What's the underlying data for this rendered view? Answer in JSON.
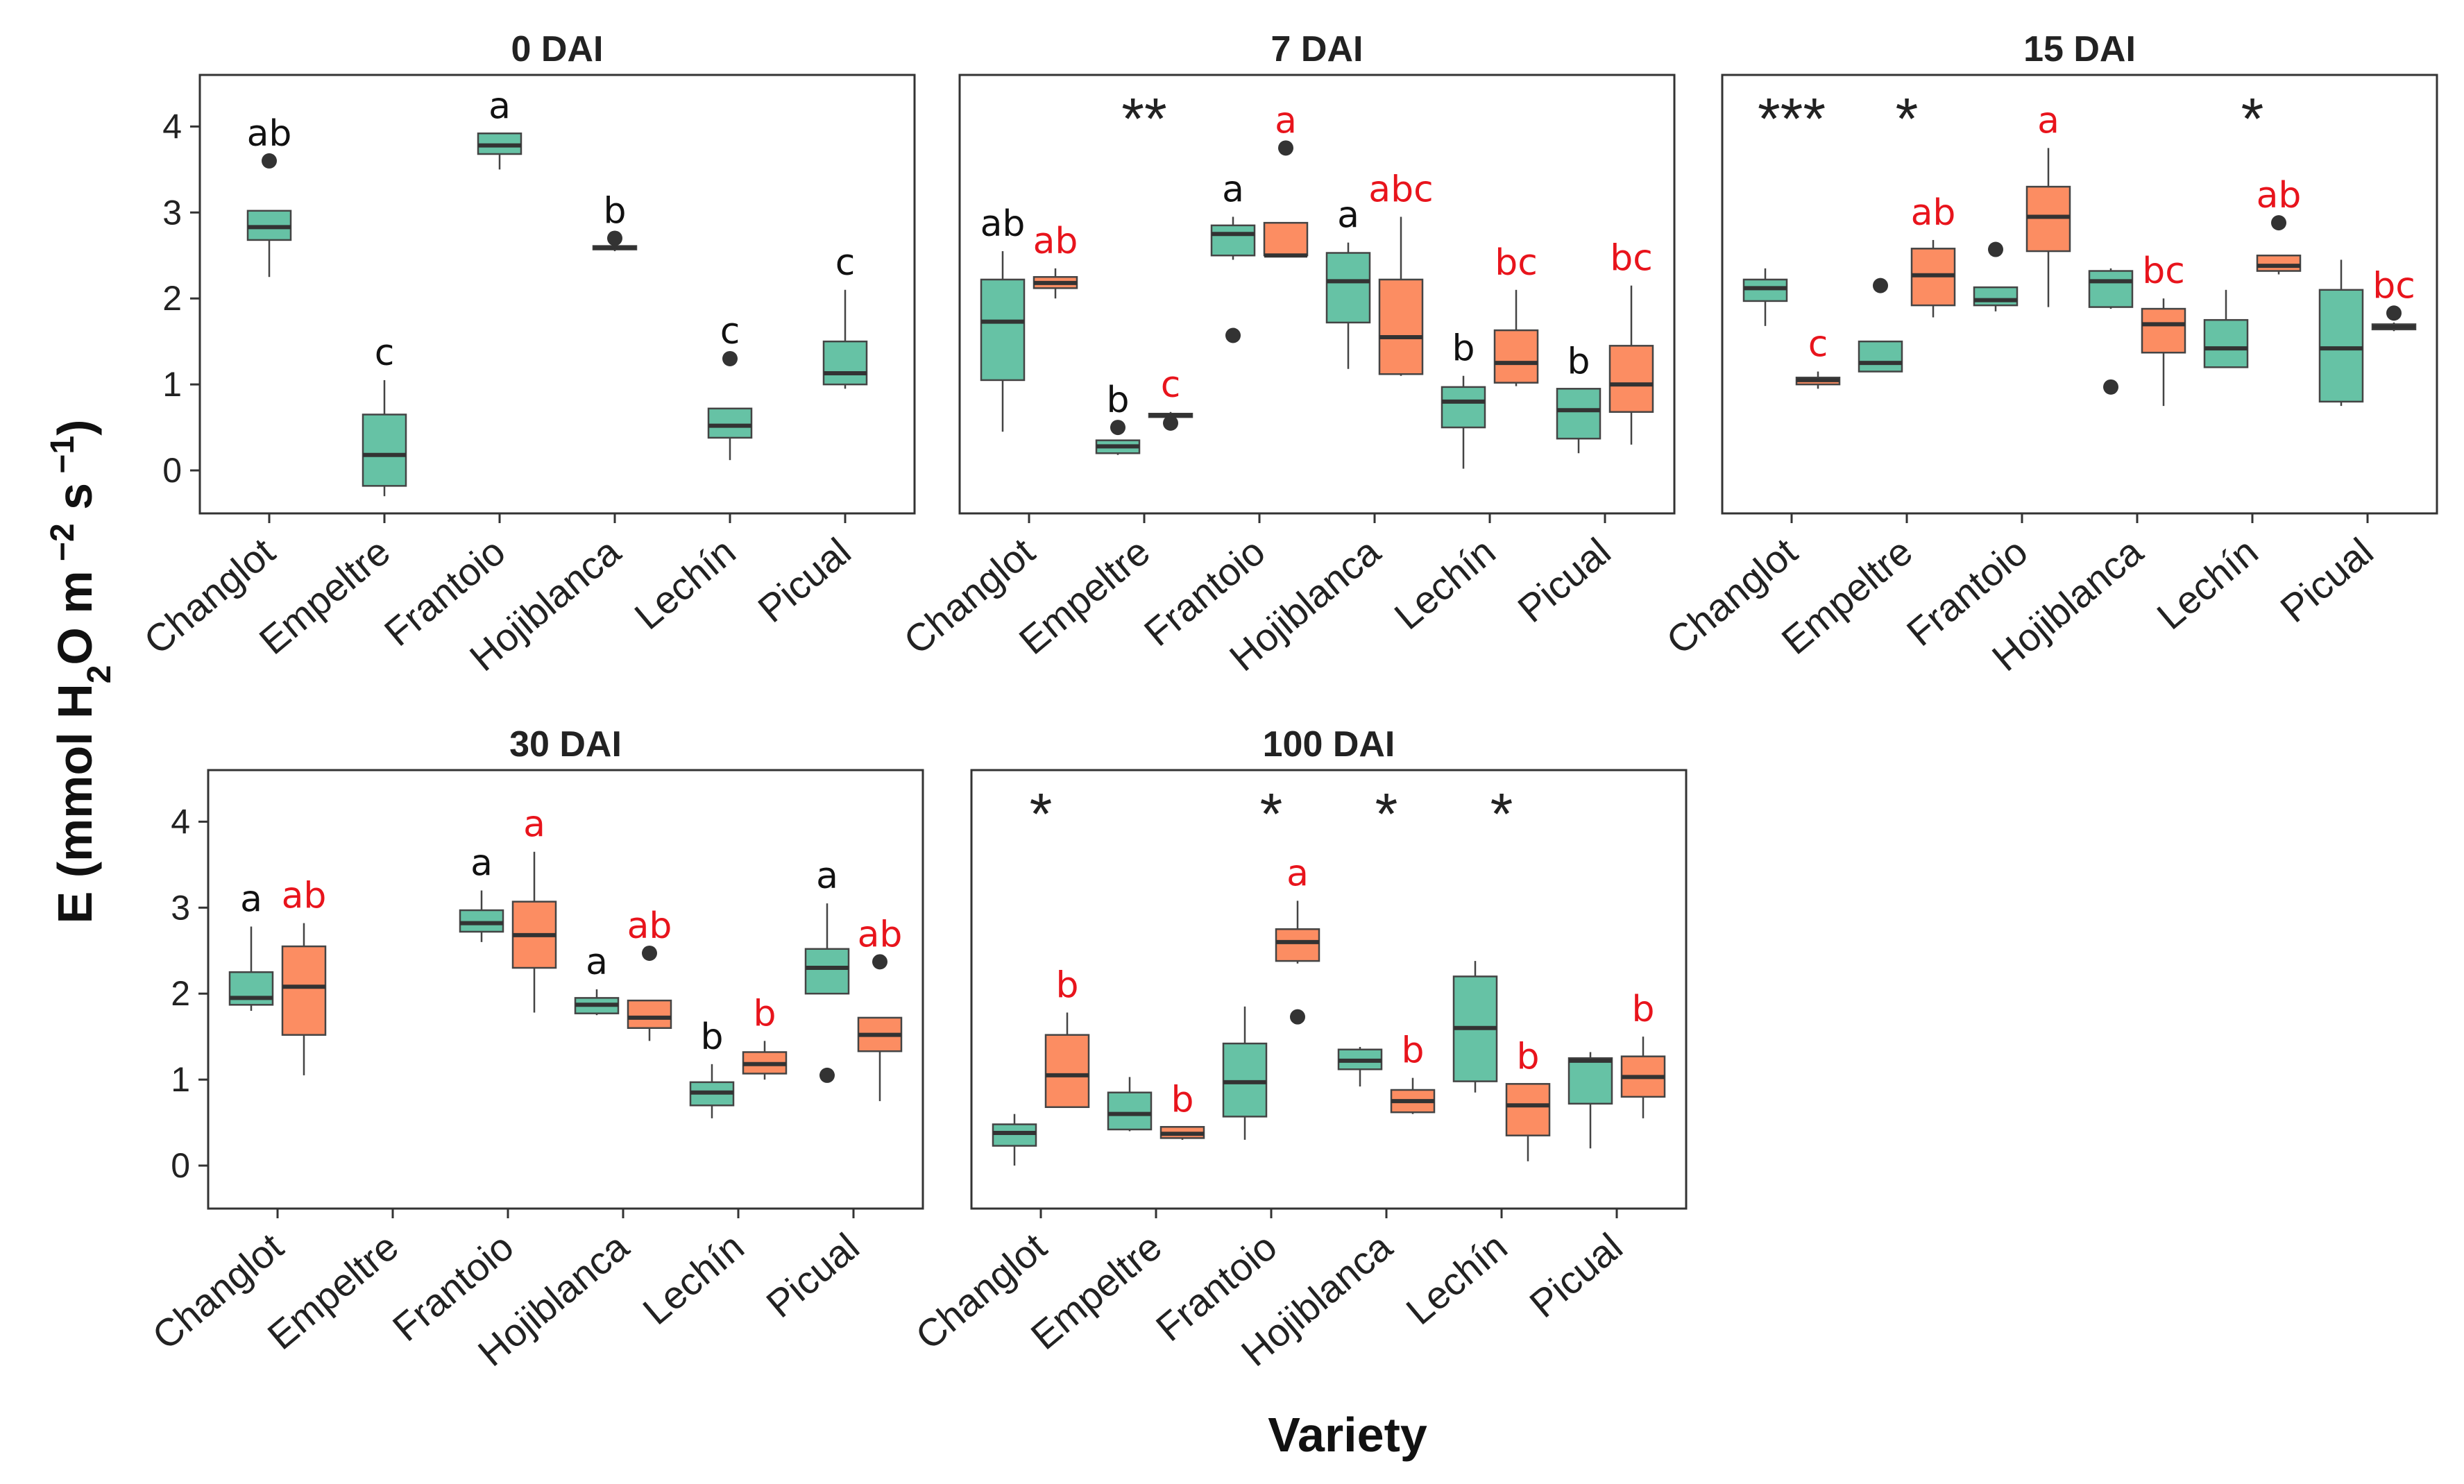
{
  "chart_data": {
    "type": "boxplot",
    "figure": {
      "ylabel": {
        "main": "E (mmol H",
        "sub": "2",
        "mid": "O m",
        "sup1": " −2",
        "mid2": " s",
        "sup2": " −1",
        "end": ")"
      },
      "xlabel": "Variety",
      "categories": [
        "Changlot",
        "Empeltre",
        "Frantoio",
        "Hojiblanca",
        "Lechín",
        "Picual"
      ],
      "ylim": [
        -0.5,
        4.6
      ],
      "yticks": [
        0,
        1,
        2,
        3,
        4
      ],
      "series_colors": {
        "control": "#66C2A5",
        "inoculated": "#FC8D62"
      },
      "letter_colors": {
        "control": "#111111",
        "inoculated": "#E8141C"
      }
    },
    "panels": [
      {
        "title": "0 DAI",
        "boxes": [
          {
            "category": "Changlot",
            "series": "control",
            "whislo": 2.25,
            "q1": 2.68,
            "med": 2.83,
            "q3": 3.02,
            "whishi": 3.02,
            "fliers": [
              3.6
            ],
            "letter": "ab"
          },
          {
            "category": "Empeltre",
            "series": "control",
            "whislo": -0.3,
            "q1": -0.18,
            "med": 0.18,
            "q3": 0.65,
            "whishi": 1.05,
            "fliers": [],
            "letter": "c"
          },
          {
            "category": "Frantoio",
            "series": "control",
            "whislo": 3.5,
            "q1": 3.68,
            "med": 3.78,
            "q3": 3.92,
            "whishi": 3.92,
            "fliers": [],
            "letter": "a"
          },
          {
            "category": "Hojiblanca",
            "series": "control",
            "whislo": 2.55,
            "q1": 2.57,
            "med": 2.59,
            "q3": 2.61,
            "whishi": 2.63,
            "fliers": [
              2.7
            ],
            "letter": "b"
          },
          {
            "category": "Lechín",
            "series": "control",
            "whislo": 0.12,
            "q1": 0.38,
            "med": 0.52,
            "q3": 0.72,
            "whishi": 0.72,
            "fliers": [
              1.3
            ],
            "letter": "c"
          },
          {
            "category": "Picual",
            "series": "control",
            "whislo": 0.95,
            "q1": 1.0,
            "med": 1.13,
            "q3": 1.5,
            "whishi": 2.1,
            "fliers": [],
            "letter": "c"
          }
        ],
        "stars": []
      },
      {
        "title": "7 DAI",
        "boxes": [
          {
            "category": "Changlot",
            "series": "control",
            "whislo": 0.45,
            "q1": 1.05,
            "med": 1.73,
            "q3": 2.22,
            "whishi": 2.55,
            "fliers": [],
            "letter": "ab"
          },
          {
            "category": "Changlot",
            "series": "inoculated",
            "whislo": 2.0,
            "q1": 2.12,
            "med": 2.18,
            "q3": 2.25,
            "whishi": 2.35,
            "fliers": [],
            "letter": "ab"
          },
          {
            "category": "Empeltre",
            "series": "control",
            "whislo": 0.18,
            "q1": 0.2,
            "med": 0.28,
            "q3": 0.35,
            "whishi": 0.35,
            "fliers": [
              0.5
            ],
            "letter": "b"
          },
          {
            "category": "Empeltre",
            "series": "inoculated",
            "whislo": 0.6,
            "q1": 0.62,
            "med": 0.64,
            "q3": 0.66,
            "whishi": 0.68,
            "fliers": [
              0.55
            ],
            "letter": "c"
          },
          {
            "category": "Frantoio",
            "series": "control",
            "whislo": 2.45,
            "q1": 2.5,
            "med": 2.75,
            "q3": 2.85,
            "whishi": 2.95,
            "fliers": [
              1.57
            ],
            "letter": "a"
          },
          {
            "category": "Frantoio",
            "series": "inoculated",
            "whislo": 2.5,
            "q1": 2.5,
            "med": 2.5,
            "q3": 2.88,
            "whishi": 2.88,
            "fliers": [
              3.75
            ],
            "letter": "a"
          },
          {
            "category": "Hojiblanca",
            "series": "control",
            "whislo": 1.18,
            "q1": 1.72,
            "med": 2.2,
            "q3": 2.53,
            "whishi": 2.65,
            "fliers": [],
            "letter": "a"
          },
          {
            "category": "Hojiblanca",
            "series": "inoculated",
            "whislo": 1.1,
            "q1": 1.12,
            "med": 1.55,
            "q3": 2.22,
            "whishi": 2.95,
            "fliers": [],
            "letter": "abc"
          },
          {
            "category": "Lechín",
            "series": "control",
            "whislo": 0.02,
            "q1": 0.5,
            "med": 0.8,
            "q3": 0.97,
            "whishi": 1.1,
            "fliers": [],
            "letter": "b"
          },
          {
            "category": "Lechín",
            "series": "inoculated",
            "whislo": 0.98,
            "q1": 1.02,
            "med": 1.25,
            "q3": 1.63,
            "whishi": 2.1,
            "fliers": [],
            "letter": "bc"
          },
          {
            "category": "Picual",
            "series": "control",
            "whislo": 0.2,
            "q1": 0.37,
            "med": 0.7,
            "q3": 0.95,
            "whishi": 0.95,
            "fliers": [],
            "letter": "b"
          },
          {
            "category": "Picual",
            "series": "inoculated",
            "whislo": 0.3,
            "q1": 0.68,
            "med": 1.0,
            "q3": 1.45,
            "whishi": 2.15,
            "fliers": [],
            "letter": "bc"
          }
        ],
        "stars": [
          {
            "category": "Empeltre",
            "text": "**"
          }
        ]
      },
      {
        "title": "15 DAI",
        "boxes": [
          {
            "category": "Changlot",
            "series": "control",
            "whislo": 1.68,
            "q1": 1.97,
            "med": 2.12,
            "q3": 2.22,
            "whishi": 2.35,
            "fliers": [],
            "letter": ""
          },
          {
            "category": "Changlot",
            "series": "inoculated",
            "whislo": 0.95,
            "q1": 1.0,
            "med": 1.05,
            "q3": 1.08,
            "whishi": 1.15,
            "fliers": [],
            "letter": "c"
          },
          {
            "category": "Empeltre",
            "series": "control",
            "whislo": 1.15,
            "q1": 1.15,
            "med": 1.25,
            "q3": 1.5,
            "whishi": 1.5,
            "fliers": [
              2.15
            ],
            "letter": ""
          },
          {
            "category": "Empeltre",
            "series": "inoculated",
            "whislo": 1.78,
            "q1": 1.92,
            "med": 2.27,
            "q3": 2.58,
            "whishi": 2.68,
            "fliers": [],
            "letter": "ab"
          },
          {
            "category": "Frantoio",
            "series": "control",
            "whislo": 1.85,
            "q1": 1.92,
            "med": 1.98,
            "q3": 2.13,
            "whishi": 2.13,
            "fliers": [
              2.57
            ],
            "letter": ""
          },
          {
            "category": "Frantoio",
            "series": "inoculated",
            "whislo": 1.9,
            "q1": 2.55,
            "med": 2.95,
            "q3": 3.3,
            "whishi": 3.75,
            "fliers": [],
            "letter": "a"
          },
          {
            "category": "Hojiblanca",
            "series": "control",
            "whislo": 1.88,
            "q1": 1.9,
            "med": 2.2,
            "q3": 2.32,
            "whishi": 2.35,
            "fliers": [
              0.97
            ],
            "letter": ""
          },
          {
            "category": "Hojiblanca",
            "series": "inoculated",
            "whislo": 0.75,
            "q1": 1.37,
            "med": 1.7,
            "q3": 1.88,
            "whishi": 2.0,
            "fliers": [],
            "letter": "bc"
          },
          {
            "category": "Lechín",
            "series": "control",
            "whislo": 1.2,
            "q1": 1.2,
            "med": 1.42,
            "q3": 1.75,
            "whishi": 2.1,
            "fliers": [],
            "letter": ""
          },
          {
            "category": "Lechín",
            "series": "inoculated",
            "whislo": 2.28,
            "q1": 2.32,
            "med": 2.38,
            "q3": 2.5,
            "whishi": 2.5,
            "fliers": [
              2.88
            ],
            "letter": "ab"
          },
          {
            "category": "Picual",
            "series": "control",
            "whislo": 0.75,
            "q1": 0.8,
            "med": 1.42,
            "q3": 2.1,
            "whishi": 2.45,
            "fliers": [],
            "letter": ""
          },
          {
            "category": "Picual",
            "series": "inoculated",
            "whislo": 1.62,
            "q1": 1.64,
            "med": 1.67,
            "q3": 1.7,
            "whishi": 1.72,
            "fliers": [
              1.83
            ],
            "letter": "bc"
          }
        ],
        "stars": [
          {
            "category": "Changlot",
            "text": "***"
          },
          {
            "category": "Empeltre",
            "text": "*"
          },
          {
            "category": "Lechín",
            "text": "*"
          }
        ]
      },
      {
        "title": "30 DAI",
        "boxes": [
          {
            "category": "Changlot",
            "series": "control",
            "whislo": 1.8,
            "q1": 1.87,
            "med": 1.95,
            "q3": 2.25,
            "whishi": 2.78,
            "fliers": [],
            "letter": "a"
          },
          {
            "category": "Changlot",
            "series": "inoculated",
            "whislo": 1.05,
            "q1": 1.52,
            "med": 2.08,
            "q3": 2.55,
            "whishi": 2.82,
            "fliers": [],
            "letter": "ab"
          },
          {
            "category": "Frantoio",
            "series": "control",
            "whislo": 2.6,
            "q1": 2.72,
            "med": 2.82,
            "q3": 2.97,
            "whishi": 3.2,
            "fliers": [],
            "letter": "a"
          },
          {
            "category": "Frantoio",
            "series": "inoculated",
            "whislo": 1.78,
            "q1": 2.3,
            "med": 2.68,
            "q3": 3.07,
            "whishi": 3.65,
            "fliers": [],
            "letter": "a"
          },
          {
            "category": "Hojiblanca",
            "series": "control",
            "whislo": 1.75,
            "q1": 1.77,
            "med": 1.87,
            "q3": 1.95,
            "whishi": 2.05,
            "fliers": [],
            "letter": "a"
          },
          {
            "category": "Hojiblanca",
            "series": "inoculated",
            "whislo": 1.45,
            "q1": 1.6,
            "med": 1.72,
            "q3": 1.92,
            "whishi": 1.92,
            "fliers": [
              2.47
            ],
            "letter": "ab"
          },
          {
            "category": "Lechín",
            "series": "control",
            "whislo": 0.55,
            "q1": 0.7,
            "med": 0.85,
            "q3": 0.97,
            "whishi": 1.18,
            "fliers": [],
            "letter": "b"
          },
          {
            "category": "Lechín",
            "series": "inoculated",
            "whislo": 1.0,
            "q1": 1.07,
            "med": 1.18,
            "q3": 1.32,
            "whishi": 1.45,
            "fliers": [],
            "letter": "b"
          },
          {
            "category": "Picual",
            "series": "control",
            "whislo": 2.0,
            "q1": 2.0,
            "med": 2.3,
            "q3": 2.52,
            "whishi": 3.05,
            "fliers": [
              1.05
            ],
            "letter": "a"
          },
          {
            "category": "Picual",
            "series": "inoculated",
            "whislo": 0.75,
            "q1": 1.33,
            "med": 1.52,
            "q3": 1.72,
            "whishi": 1.72,
            "fliers": [
              2.37
            ],
            "letter": "ab"
          }
        ],
        "stars": []
      },
      {
        "title": "100 DAI",
        "boxes": [
          {
            "category": "Changlot",
            "series": "control",
            "whislo": 0.0,
            "q1": 0.23,
            "med": 0.38,
            "q3": 0.48,
            "whishi": 0.6,
            "fliers": [],
            "letter": ""
          },
          {
            "category": "Changlot",
            "series": "inoculated",
            "whislo": 0.68,
            "q1": 0.68,
            "med": 1.05,
            "q3": 1.52,
            "whishi": 1.78,
            "fliers": [],
            "letter": "b"
          },
          {
            "category": "Empeltre",
            "series": "control",
            "whislo": 0.4,
            "q1": 0.42,
            "med": 0.6,
            "q3": 0.85,
            "whishi": 1.03,
            "fliers": [],
            "letter": ""
          },
          {
            "category": "Empeltre",
            "series": "inoculated",
            "whislo": 0.3,
            "q1": 0.32,
            "med": 0.37,
            "q3": 0.45,
            "whishi": 0.45,
            "fliers": [],
            "letter": "b"
          },
          {
            "category": "Frantoio",
            "series": "control",
            "whislo": 0.3,
            "q1": 0.57,
            "med": 0.97,
            "q3": 1.42,
            "whishi": 1.85,
            "fliers": [],
            "letter": ""
          },
          {
            "category": "Frantoio",
            "series": "inoculated",
            "whislo": 2.35,
            "q1": 2.38,
            "med": 2.6,
            "q3": 2.75,
            "whishi": 3.08,
            "fliers": [
              1.73
            ],
            "letter": "a"
          },
          {
            "category": "Hojiblanca",
            "series": "control",
            "whislo": 0.92,
            "q1": 1.12,
            "med": 1.22,
            "q3": 1.35,
            "whishi": 1.38,
            "fliers": [],
            "letter": ""
          },
          {
            "category": "Hojiblanca",
            "series": "inoculated",
            "whislo": 0.6,
            "q1": 0.62,
            "med": 0.75,
            "q3": 0.88,
            "whishi": 1.02,
            "fliers": [],
            "letter": "b"
          },
          {
            "category": "Lechín",
            "series": "control",
            "whislo": 0.85,
            "q1": 0.98,
            "med": 1.6,
            "q3": 2.2,
            "whishi": 2.38,
            "fliers": [],
            "letter": ""
          },
          {
            "category": "Lechín",
            "series": "inoculated",
            "whislo": 0.05,
            "q1": 0.35,
            "med": 0.7,
            "q3": 0.95,
            "whishi": 0.95,
            "fliers": [],
            "letter": "b"
          },
          {
            "category": "Picual",
            "series": "control",
            "whislo": 0.2,
            "q1": 0.72,
            "med": 1.22,
            "q3": 1.25,
            "whishi": 1.32,
            "fliers": [],
            "letter": ""
          },
          {
            "category": "Picual",
            "series": "inoculated",
            "whislo": 0.55,
            "q1": 0.8,
            "med": 1.03,
            "q3": 1.27,
            "whishi": 1.5,
            "fliers": [],
            "letter": "b"
          }
        ],
        "stars": [
          {
            "category": "Changlot",
            "text": "*"
          },
          {
            "category": "Frantoio",
            "text": "*"
          },
          {
            "category": "Hojiblanca",
            "text": "*"
          },
          {
            "category": "Lechín",
            "text": "*"
          }
        ]
      }
    ]
  }
}
